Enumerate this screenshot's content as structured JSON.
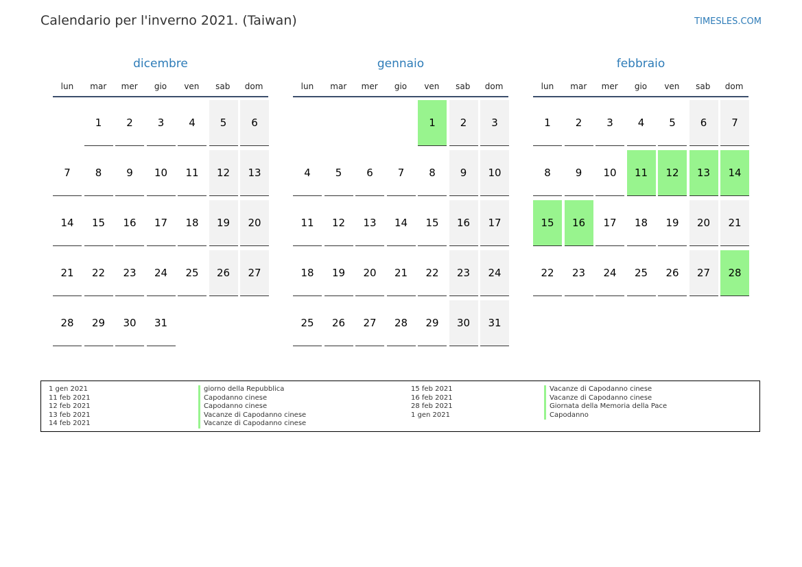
{
  "header": {
    "title": "Calendario per l'inverno 2021. (Taiwan)",
    "brand": "TIMESLES.COM"
  },
  "colors": {
    "accent": "#2e7cb8",
    "holiday": "#98f48e",
    "weekend": "#f2f2f2"
  },
  "weekdays": [
    "lun",
    "mar",
    "mer",
    "gio",
    "ven",
    "sab",
    "dom"
  ],
  "months": [
    {
      "name": "dicembre",
      "first_weekday": 1,
      "days": 31,
      "holidays": []
    },
    {
      "name": "gennaio",
      "first_weekday": 4,
      "days": 31,
      "holidays": [
        1
      ]
    },
    {
      "name": "febbraio",
      "first_weekday": 0,
      "days": 28,
      "holidays": [
        11,
        12,
        13,
        14,
        15,
        16,
        28
      ]
    }
  ],
  "legend": [
    {
      "date": "1 gen 2021",
      "name": "giorno della Repubblica"
    },
    {
      "date": "11 feb 2021",
      "name": "Capodanno cinese"
    },
    {
      "date": "12 feb 2021",
      "name": "Capodanno cinese"
    },
    {
      "date": "13 feb 2021",
      "name": "Vacanze di Capodanno cinese"
    },
    {
      "date": "14 feb 2021",
      "name": "Vacanze di Capodanno cinese"
    },
    {
      "date": "15 feb 2021",
      "name": "Vacanze di Capodanno cinese"
    },
    {
      "date": "16 feb 2021",
      "name": "Vacanze di Capodanno cinese"
    },
    {
      "date": "28 feb 2021",
      "name": "Giornata della Memoria della Pace"
    },
    {
      "date": "1 gen 2021",
      "name": "Capodanno"
    }
  ]
}
